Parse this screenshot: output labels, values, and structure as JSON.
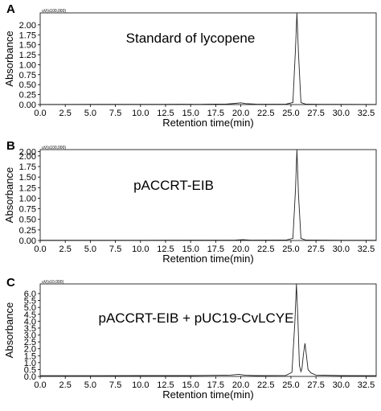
{
  "chart_data": [
    {
      "panel": "A",
      "type": "line",
      "title": "Standard of lycopene",
      "scale_note": "uV(x100,000)",
      "xlabel": "Retention time(min)",
      "ylabel": "Absorbance",
      "xlim": [
        0,
        33.5
      ],
      "ylim": [
        0,
        2.3
      ],
      "xticks": [
        "0.0",
        "2.5",
        "5.0",
        "7.5",
        "10.0",
        "12.5",
        "15.0",
        "17.5",
        "20.0",
        "22.5",
        "25.0",
        "27.5",
        "30.0",
        "32.5"
      ],
      "yticks": [
        "0.00",
        "0.25",
        "0.50",
        "0.75",
        "1.00",
        "1.25",
        "1.50",
        "1.75",
        "2.00"
      ],
      "series": [
        {
          "x": [
            0,
            2,
            5,
            8,
            10,
            12,
            14,
            16,
            17.5,
            18.5,
            19.5,
            20.0,
            20.5,
            21.5,
            23,
            24.5,
            25.2,
            25.45,
            25.6,
            25.75,
            26.0,
            26.5,
            28,
            30,
            33.5
          ],
          "y": [
            0.005,
            0.005,
            0.006,
            0.006,
            0.007,
            0.006,
            0.008,
            0.006,
            0.012,
            0.01,
            0.03,
            0.045,
            0.025,
            0.01,
            0.008,
            0.01,
            0.05,
            1.4,
            2.35,
            1.3,
            0.05,
            0.01,
            0.006,
            0.006,
            0.005
          ]
        }
      ]
    },
    {
      "panel": "B",
      "type": "line",
      "title": "pACCRT-EIB",
      "scale_note": "uV(x100,000)",
      "xlabel": "Retention time(min)",
      "ylabel": "Absorbance",
      "xlim": [
        0,
        33.5
      ],
      "ylim": [
        0,
        2.15
      ],
      "xticks": [
        "0.0",
        "2.5",
        "5.0",
        "7.5",
        "10.0",
        "12.5",
        "15.0",
        "17.5",
        "20.0",
        "22.5",
        "25.0",
        "27.5",
        "30.0",
        "32.5"
      ],
      "yticks": [
        "0.00",
        "0.25",
        "0.50",
        "0.75",
        "1.00",
        "1.25",
        "1.50",
        "1.75",
        "2.00",
        "2.00"
      ],
      "series": [
        {
          "x": [
            0,
            5,
            10,
            15,
            19.5,
            20.2,
            21,
            24.5,
            25.2,
            25.45,
            25.6,
            25.75,
            26.0,
            26.5,
            30,
            33.5
          ],
          "y": [
            0.005,
            0.005,
            0.006,
            0.007,
            0.01,
            0.02,
            0.008,
            0.01,
            0.05,
            1.2,
            2.15,
            1.1,
            0.05,
            0.01,
            0.006,
            0.005
          ]
        }
      ]
    },
    {
      "panel": "C",
      "type": "line",
      "title": "pACCRT-EIB + pUC19-CvLCYE",
      "scale_note": "uV(x10,000)",
      "xlabel": "Retention time(min)",
      "ylabel": "Absorbance",
      "xlim": [
        0,
        33.5
      ],
      "ylim": [
        0,
        6.7
      ],
      "xticks": [
        "0.0",
        "2.5",
        "5.0",
        "7.5",
        "10.0",
        "12.5",
        "15.0",
        "17.5",
        "20.0",
        "22.5",
        "25.0",
        "27.5",
        "30.0",
        "32.5"
      ],
      "yticks": [
        "0.0",
        "0.5",
        "1.0",
        "1.5",
        "2.0",
        "2.5",
        "3.0",
        "3.5",
        "4.0",
        "4.5",
        "5.0",
        "5.5",
        "6.0"
      ],
      "series": [
        {
          "x": [
            0,
            5,
            10,
            15,
            18,
            19,
            19.8,
            20.5,
            21.5,
            24.5,
            25.1,
            25.4,
            25.55,
            25.7,
            25.85,
            26.0,
            26.1,
            26.25,
            26.4,
            26.55,
            26.7,
            27.0,
            27.5,
            30,
            33.5
          ],
          "y": [
            0.05,
            0.05,
            0.06,
            0.06,
            0.08,
            0.1,
            0.15,
            0.08,
            0.06,
            0.07,
            0.3,
            4.0,
            6.7,
            4.0,
            0.8,
            0.35,
            0.6,
            1.6,
            2.4,
            1.5,
            0.5,
            0.25,
            0.1,
            0.06,
            0.05
          ]
        }
      ]
    }
  ]
}
